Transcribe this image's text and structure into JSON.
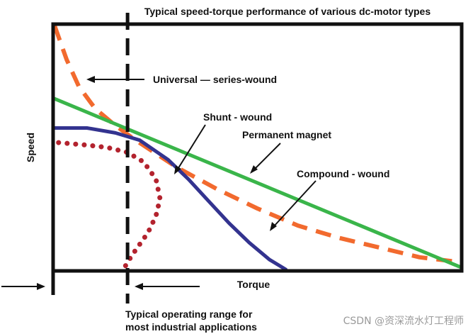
{
  "chart_data": {
    "type": "line",
    "title": "Typical speed-torque performance of various dc-motor types",
    "xlabel": "Torque",
    "ylabel": "Speed",
    "xlim": [
      0,
      100
    ],
    "ylim": [
      0,
      100
    ],
    "grid": false,
    "operating_range_text": [
      "Typical operating range for",
      "most industrial applications"
    ],
    "series": [
      {
        "name": "Universal — series-wound",
        "color": "#f26a2e",
        "style": "dashed",
        "x": [
          0,
          3,
          6,
          10,
          15,
          20,
          30,
          40,
          50,
          60,
          70,
          80,
          90,
          100
        ],
        "y": [
          100,
          86,
          75,
          66,
          59,
          53,
          42,
          33,
          25,
          18,
          13,
          9,
          5,
          3
        ]
      },
      {
        "name": "Shunt - wound",
        "color": "#33338f",
        "style": "solid",
        "x": [
          0,
          8,
          15,
          21,
          28,
          33,
          38,
          43,
          48,
          53,
          57
        ],
        "y": [
          58,
          58,
          56,
          53,
          45,
          37,
          28,
          19,
          11,
          4,
          0
        ]
      },
      {
        "name": "Permanent magnet",
        "color": "#3ab54a",
        "style": "solid",
        "x": [
          0,
          100
        ],
        "y": [
          70,
          1
        ]
      },
      {
        "name": "Compound - wound",
        "color": "#b3232e",
        "style": "dotted",
        "x": [
          1,
          8,
          13,
          18,
          22,
          25,
          26,
          25,
          23,
          20,
          18,
          17
        ],
        "y": [
          52,
          51,
          50,
          48,
          44,
          37,
          29,
          22,
          15,
          8,
          3,
          0
        ]
      }
    ],
    "operating_range_x": 18,
    "watermark": "CSDN @资深流水灯工程师"
  }
}
